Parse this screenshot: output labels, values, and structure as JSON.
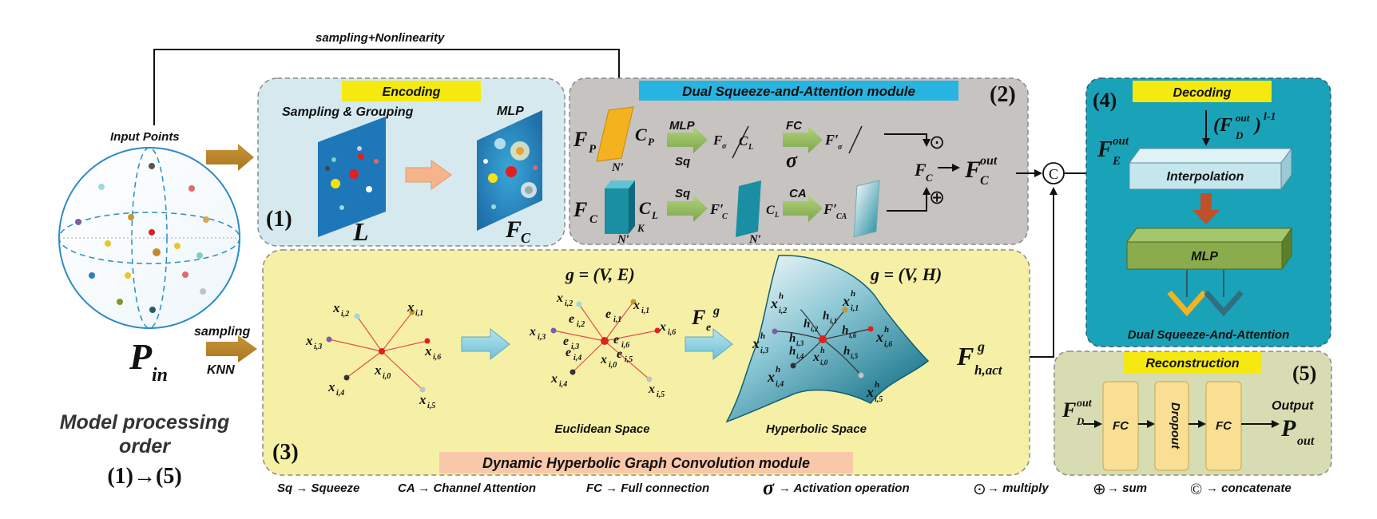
{
  "top_arrow_label": "sampling+Nonlinearity",
  "input": {
    "label": "Input Points",
    "symbol": "P",
    "subscript": "in"
  },
  "sampling": {
    "top": "sampling",
    "bottom": "KNN"
  },
  "order": {
    "line1": "Model processing",
    "line2": "order",
    "line3": "(1)→(5)"
  },
  "encoding": {
    "title": "Encoding",
    "number": "(1)",
    "left_label": "Sampling & Grouping",
    "right_label": "MLP",
    "L": "L",
    "F": "F",
    "F_sub": "C"
  },
  "dsa": {
    "title": "Dual Squeeze-and-Attention module",
    "number": "(2)",
    "mlp": "MLP",
    "sq": "Sq",
    "fc": "FC",
    "sigma": "σ",
    "ca": "CA",
    "fp": "F",
    "fp_sub": "P",
    "cp": "C",
    "cp_sub": "P",
    "n_prime": "N′",
    "fc_left": "F",
    "fc_left_sub": "C",
    "cl": "C",
    "cl_sub": "L",
    "k": "K",
    "f_sigma": "F",
    "f_sigma_sub": "σ",
    "slash_cl": "C",
    "slash_cl_sub": "L",
    "f_sigma_prime": "F′",
    "f_sigma_prime_sub": "σ",
    "f_c_prime": "F′",
    "f_c_prime_sub": "C",
    "cl2": "C",
    "cl2_sub": "L",
    "f_ca_prime": "F′",
    "f_ca_prime_sub": "CA",
    "odot": "⊙",
    "oplus": "⊕",
    "fc_merge": "F",
    "fc_merge_sub": "C",
    "fc_out": "F",
    "fc_out_sub": "C",
    "fc_out_sup": "out",
    "concat": "C"
  },
  "dhgc": {
    "title": "Dynamic Hyperbolic Graph Convolution module",
    "number": "(3)",
    "euclid_graph": "g  =  (ᵔ, ᵓ)",
    "euclid_graph_text": "g = (V, E)",
    "hyper_graph_text": "g = (V, H)",
    "euclidean_space": "Euclidean Space",
    "hyperbolic_space": "Hyperbolic Space",
    "fe": "F",
    "fe_sub": "e",
    "fe_sup": "g",
    "fh": "F",
    "fh_sub": "h,act",
    "fh_sup": "g",
    "star1_labels": [
      "x",
      "x",
      "x",
      "x",
      "x",
      "x",
      "x"
    ],
    "star1_subs": [
      "i,2",
      "i,1",
      "i,3",
      "i,6",
      "i,0",
      "i,4",
      "i,5"
    ],
    "star2_x_subs": [
      "i,2",
      "i,1",
      "i,3",
      "i,6",
      "i,4",
      "i,5"
    ],
    "star2_e_subs": [
      "i,2",
      "i,1",
      "i,3",
      "i,6",
      "i,4",
      "i,5"
    ],
    "star2_center": "i,0",
    "star3_x_subs": [
      "i,2",
      "i,1",
      "i,3",
      "i,6",
      "i,4",
      "i,5"
    ],
    "star3_h_subs": [
      "i,2",
      "i,1",
      "i,3",
      "i,6",
      "i,4",
      "i,5"
    ],
    "star3_center": "i,0",
    "sup_h": "h"
  },
  "decoding": {
    "title": "Decoding",
    "number": "(4)",
    "fe": "F",
    "fe_sub": "E",
    "fe_sup": "out",
    "fd": "(F",
    "fd_sub": "D",
    "fd_sup": "out",
    "fd_close": ")",
    "fd_exp": "l-1",
    "interpolation": "Interpolation",
    "mlp": "MLP",
    "footer": "Dual Squeeze-And-Attention"
  },
  "reconstruction": {
    "title": "Reconstruction",
    "number": "(5)",
    "fd": "F",
    "fd_sub": "D",
    "fd_sup": "out",
    "fc1": "FC",
    "dropout": "Dropout",
    "fc2": "FC",
    "output": "Output",
    "pout": "P",
    "pout_sub": "out"
  },
  "legend": {
    "sq": "Sq → Squeeze",
    "ca": "CA →  Channel Attention",
    "fc": "FC  → Full connection",
    "sigma_sym": "σ",
    "sigma": " → Activation operation",
    "odot_sym": "⊙",
    "odot": " → multiply",
    "oplus_sym": "⊕",
    "oplus": " → sum",
    "concat_sym": "©",
    "concat": "→ concatenate"
  },
  "colors": {
    "encoding_bg": "#d5e9ef",
    "dsa_bg": "#c6c3c1",
    "dhgc_bg": "#f6f0a6",
    "decoding_bg": "#1aa2b8",
    "recon_bg": "#d8dcb2",
    "title_yellow": "#f5e90f",
    "dsa_title": "#28b4e0",
    "dhgc_title_bg": "#f9c8a8"
  }
}
